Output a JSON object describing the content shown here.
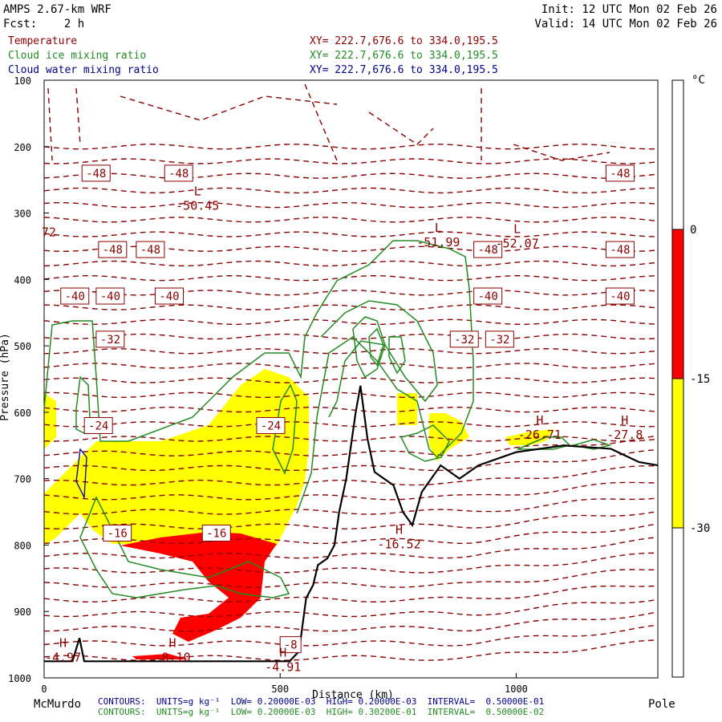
{
  "header": {
    "model": "AMPS 2.67-km WRF",
    "init": "Init: 12 UTC Mon 02 Feb 26",
    "fcst": "Fcst:    2 h",
    "valid": "Valid: 14 UTC Mon 02 Feb 26",
    "legend": [
      {
        "name": "Temperature",
        "xy": "XY= 222.7,676.6 to 334.0,195.5",
        "color": "#8b0000"
      },
      {
        "name": "Cloud ice mixing ratio",
        "xy": "XY= 222.7,676.6 to 334.0,195.5",
        "color": "#228b22"
      },
      {
        "name": "Cloud water mixing ratio",
        "xy": "XY= 222.7,676.6 to 334.0,195.5",
        "color": "#00008b"
      }
    ]
  },
  "footer": {
    "left_label": "McMurdo",
    "right_label": "Pole",
    "contour_lines": [
      {
        "text": "CONTOURS:  UNITS=g kg⁻¹  LOW= 0.20000E-03  HIGH= 0.20000E-03  INTERVAL=  0.50000E-01",
        "color": "#00008b"
      },
      {
        "text": "CONTOURS:  UNITS=g kg⁻¹  LOW= 0.20000E-03  HIGH= 0.30200E-01  INTERVAL=  0.50000E-02",
        "color": "#228b22"
      }
    ]
  },
  "colorbar": {
    "unit": "°C",
    "ticks": [
      "0",
      "-15",
      "-30"
    ],
    "bands": [
      {
        "color": "#ffffff"
      },
      {
        "color": "#ff0000"
      },
      {
        "color": "#ffff00"
      },
      {
        "color": "#ffffff"
      }
    ]
  },
  "chart_data": {
    "type": "contour",
    "ylabel": "Pressure (hPa)",
    "xlabel": "Distance (km)",
    "y_ticks": [
      100,
      200,
      300,
      400,
      500,
      600,
      700,
      800,
      900,
      1000
    ],
    "x_ticks": [
      0,
      500,
      1000
    ],
    "ylim": [
      100,
      1000
    ],
    "xlim": [
      0,
      1300
    ],
    "y_reversed": true,
    "temperature_levels": [
      {
        "p": 240,
        "label": "-48",
        "xs": [
          110,
          285,
          1220
        ]
      },
      {
        "p": 355,
        "label": "-48",
        "xs": [
          145,
          225,
          940,
          1220
        ]
      },
      {
        "p": 425,
        "label": "-40",
        "xs": [
          65,
          140,
          265,
          940,
          1220
        ]
      },
      {
        "p": 490,
        "label": "-32",
        "xs": [
          140,
          890,
          965
        ]
      },
      {
        "p": 620,
        "label": "-24",
        "xs": [
          115,
          480
        ]
      },
      {
        "p": 782,
        "label": "-16",
        "xs": [
          155,
          365
        ]
      },
      {
        "p": 950,
        "label": "-8",
        "xs": [
          522
        ]
      }
    ],
    "extrema": [
      {
        "kind": "L",
        "value": "-50.45",
        "x": 325,
        "p": 295
      },
      {
        "kind": "L",
        "value": "-51.99",
        "x": 835,
        "p": 350
      },
      {
        "kind": "L",
        "value": "-52.07",
        "x": 1002,
        "p": 352
      },
      {
        "kind": "H",
        "value": "-26.71",
        "x": 1050,
        "p": 640
      },
      {
        "kind": "H",
        "value": "-27.8",
        "x": 1230,
        "p": 640
      },
      {
        "kind": "H",
        "value": "-16.52",
        "x": 752,
        "p": 805
      },
      {
        "kind": "H",
        "value": "-8.10",
        "x": 272,
        "p": 975
      },
      {
        "kind": "H",
        "value": "-4.91",
        "x": 506,
        "p": 990
      },
      {
        "kind": "H",
        "value": "-4.97",
        "x": 40,
        "p": 975
      },
      {
        "kind": "edge",
        "value": "72",
        "x": 10,
        "p": 335
      }
    ],
    "terrain": [
      [
        0,
        975
      ],
      [
        60,
        975
      ],
      [
        75,
        940
      ],
      [
        85,
        975
      ],
      [
        200,
        975
      ],
      [
        500,
        975
      ],
      [
        520,
        975
      ],
      [
        540,
        960
      ],
      [
        555,
        880
      ],
      [
        570,
        860
      ],
      [
        580,
        830
      ],
      [
        600,
        820
      ],
      [
        615,
        800
      ],
      [
        625,
        750
      ],
      [
        640,
        700
      ],
      [
        650,
        650
      ],
      [
        660,
        600
      ],
      [
        670,
        560
      ],
      [
        685,
        640
      ],
      [
        700,
        690
      ],
      [
        720,
        700
      ],
      [
        740,
        710
      ],
      [
        760,
        750
      ],
      [
        780,
        770
      ],
      [
        800,
        720
      ],
      [
        820,
        700
      ],
      [
        840,
        680
      ],
      [
        860,
        690
      ],
      [
        880,
        700
      ],
      [
        920,
        680
      ],
      [
        1000,
        660
      ],
      [
        1100,
        650
      ],
      [
        1200,
        655
      ],
      [
        1260,
        675
      ],
      [
        1300,
        680
      ]
    ]
  }
}
